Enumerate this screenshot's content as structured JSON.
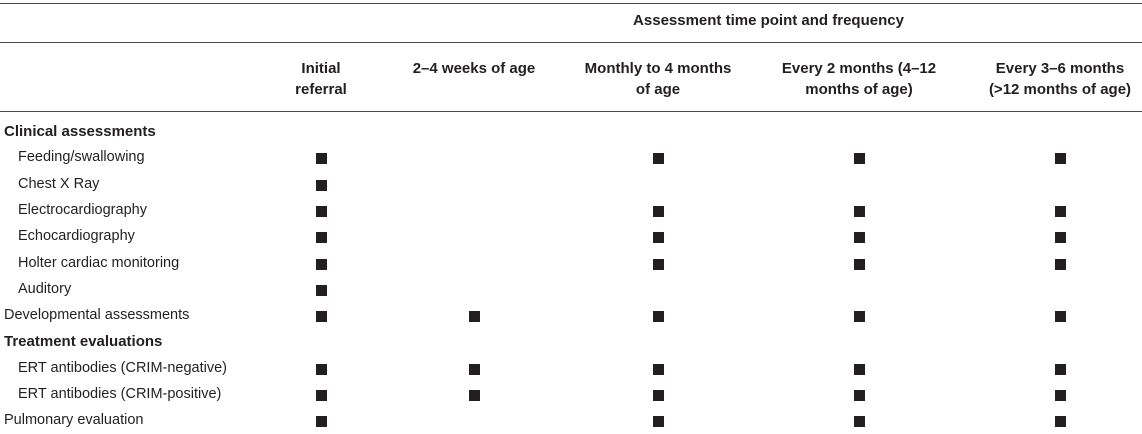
{
  "table": {
    "super_header": "Assessment time point and frequency",
    "columns": [
      {
        "label": "Initial\nreferral"
      },
      {
        "label": "2–4 weeks of age"
      },
      {
        "label": "Monthly to 4 months\nof age"
      },
      {
        "label": "Every 2 months (4–12\nmonths of age)"
      },
      {
        "label": "Every 3–6 months\n(>12 months of age)"
      }
    ],
    "rows": [
      {
        "label": "Clinical assessments",
        "type": "section",
        "marks": [
          false,
          false,
          false,
          false,
          false
        ]
      },
      {
        "label": "Feeding/swallowing",
        "type": "indent",
        "marks": [
          true,
          false,
          true,
          true,
          true
        ]
      },
      {
        "label": "Chest X Ray",
        "type": "indent",
        "marks": [
          true,
          false,
          false,
          false,
          false
        ]
      },
      {
        "label": "Electrocardiography",
        "type": "indent",
        "marks": [
          true,
          false,
          true,
          true,
          true
        ]
      },
      {
        "label": "Echocardiography",
        "type": "indent",
        "marks": [
          true,
          false,
          true,
          true,
          true
        ]
      },
      {
        "label": "Holter cardiac monitoring",
        "type": "indent",
        "marks": [
          true,
          false,
          true,
          true,
          true
        ]
      },
      {
        "label": "Auditory",
        "type": "indent",
        "marks": [
          true,
          false,
          false,
          false,
          false
        ]
      },
      {
        "label": "Developmental assessments",
        "type": "flush",
        "marks": [
          true,
          true,
          true,
          true,
          true
        ]
      },
      {
        "label": "Treatment evaluations",
        "type": "section",
        "marks": [
          false,
          false,
          false,
          false,
          false
        ]
      },
      {
        "label": "ERT antibodies (CRIM-negative)",
        "type": "indent",
        "marks": [
          true,
          true,
          true,
          true,
          true
        ]
      },
      {
        "label": "ERT antibodies (CRIM-positive)",
        "type": "indent",
        "marks": [
          true,
          true,
          true,
          true,
          true
        ]
      },
      {
        "label": "Pulmonary evaluation",
        "type": "flush",
        "marks": [
          true,
          false,
          true,
          true,
          true
        ]
      }
    ]
  }
}
